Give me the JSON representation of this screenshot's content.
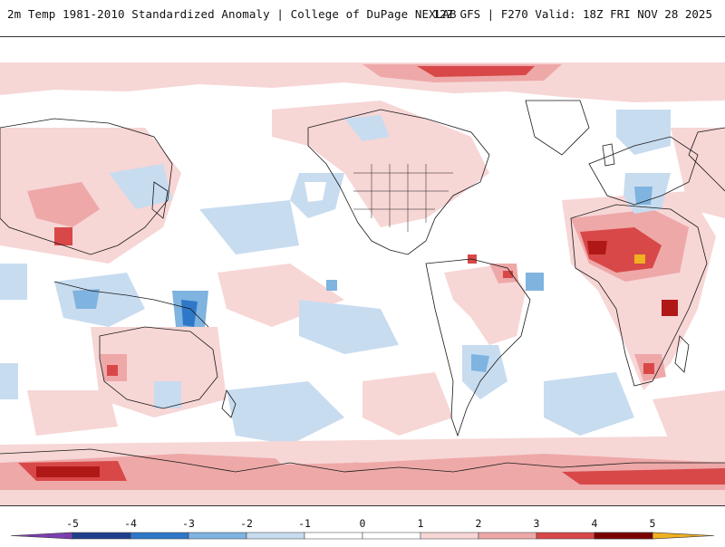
{
  "header": {
    "title": "2m Temp 1981-2010 Standardized Anomaly | College of DuPage NEXLAB",
    "run_info": "12Z GFS | F270 Valid: 18Z FRI NOV 28 2025"
  },
  "colorbar": {
    "ticks": [
      "-5",
      "-4",
      "-3",
      "-2",
      "-1",
      "0",
      "1",
      "2",
      "3",
      "4",
      "5"
    ],
    "colors": {
      "neg5": "#7a3fb0",
      "neg4": "#1f3f8c",
      "neg3": "#2f78c8",
      "neg2": "#7fb3e0",
      "neg1": "#c8dcf0",
      "zero": "#ffffff",
      "pos1": "#f7d6d6",
      "pos2": "#eea8a8",
      "pos3": "#d84848",
      "pos4": "#b01818",
      "pos5": "#7a0000",
      "pos6": "#f0b020"
    }
  },
  "map": {
    "projection": "cylindrical equidistant, Pacific centered",
    "colors": {
      "land_line": "#1a1a1a",
      "background": "#ffffff"
    }
  }
}
